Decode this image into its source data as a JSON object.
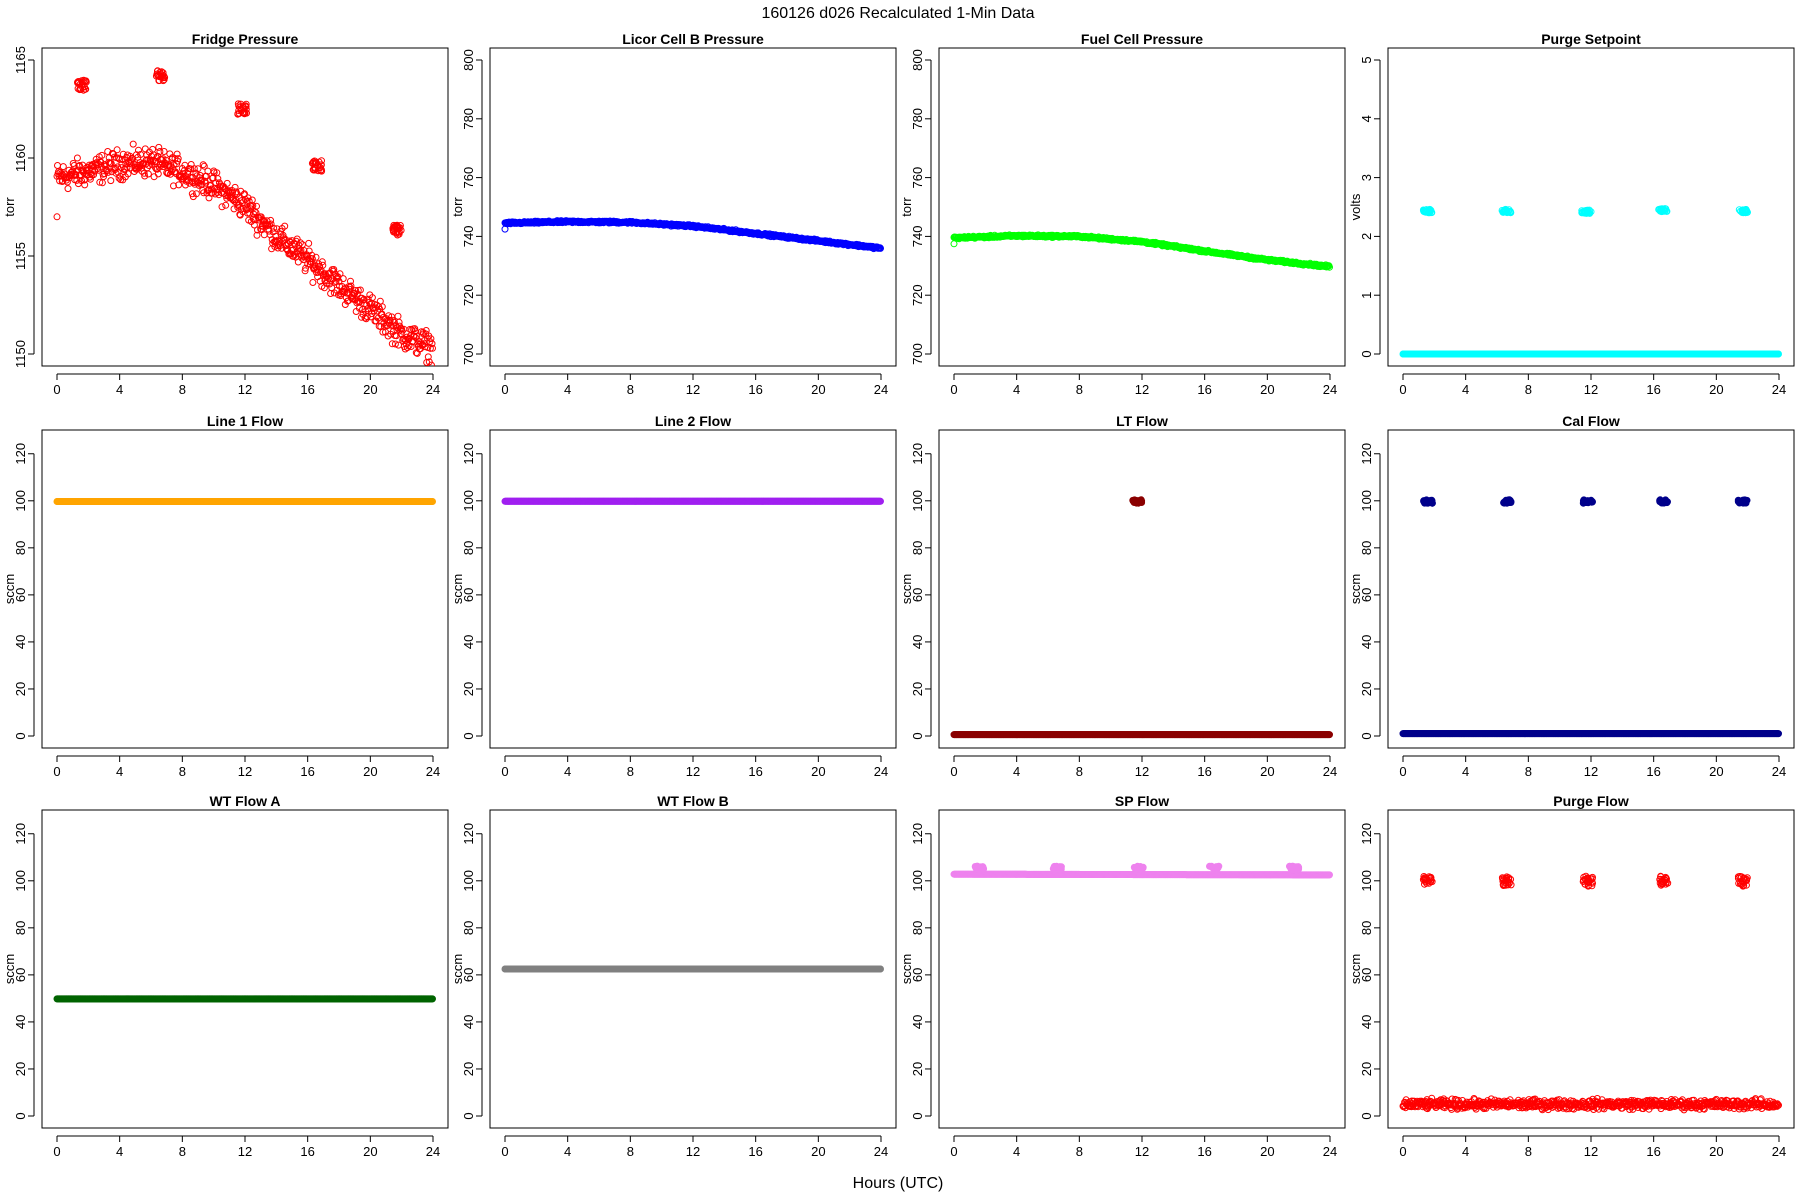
{
  "figure": {
    "title": "160126   d026   Recalculated 1-Min Data",
    "xlabel": "Hours (UTC)"
  },
  "chart_data": [
    {
      "type": "scatter",
      "title": "Fridge Pressure",
      "ylabel": "torr",
      "xlim": [
        0,
        24
      ],
      "ylim": [
        1150,
        1165
      ],
      "xticks": [
        0,
        4,
        8,
        12,
        16,
        20,
        24
      ],
      "yticks": [
        1150,
        1155,
        1160,
        1165
      ],
      "color": "#ff0000",
      "marker": "open-circle",
      "series": [
        {
          "baseline": [
            [
              0,
              1159
            ],
            [
              2,
              1159.3
            ],
            [
              4,
              1159.7
            ],
            [
              6,
              1159.8
            ],
            [
              8,
              1159.3
            ],
            [
              10,
              1158.6
            ],
            [
              12,
              1157.6
            ],
            [
              14,
              1156
            ],
            [
              16,
              1154.8
            ],
            [
              18,
              1153.5
            ],
            [
              20,
              1152.3
            ],
            [
              22,
              1151
            ],
            [
              24,
              1150.3
            ]
          ],
          "spread": 0.8,
          "clusters": [
            [
              1.6,
              1163.7
            ],
            [
              6.6,
              1164.2
            ],
            [
              11.8,
              1162.5
            ],
            [
              16.6,
              1159.6
            ],
            [
              21.7,
              1156.3
            ]
          ],
          "outliers": [
            [
              0,
              1157
            ]
          ]
        }
      ]
    },
    {
      "type": "scatter",
      "title": "Licor Cell B Pressure",
      "ylabel": "torr",
      "xlim": [
        0,
        24
      ],
      "ylim": [
        700,
        800
      ],
      "xticks": [
        0,
        4,
        8,
        12,
        16,
        20,
        24
      ],
      "yticks": [
        700,
        720,
        740,
        760,
        780,
        800
      ],
      "color": "#0000ff",
      "marker": "open-circle",
      "series": [
        {
          "baseline": [
            [
              0,
              744.5
            ],
            [
              4,
              745
            ],
            [
              8,
              744.8
            ],
            [
              12,
              743.5
            ],
            [
              16,
              741
            ],
            [
              20,
              738.5
            ],
            [
              24,
              736
            ]
          ],
          "spread": 0.4,
          "clusters": [],
          "outliers": [
            [
              0,
              742.5
            ]
          ]
        }
      ]
    },
    {
      "type": "scatter",
      "title": "Fuel Cell Pressure",
      "ylabel": "torr",
      "xlim": [
        0,
        24
      ],
      "ylim": [
        700,
        800
      ],
      "xticks": [
        0,
        4,
        8,
        12,
        16,
        20,
        24
      ],
      "yticks": [
        700,
        720,
        740,
        760,
        780,
        800
      ],
      "color": "#00ff00",
      "marker": "open-circle",
      "series": [
        {
          "baseline": [
            [
              0,
              739.5
            ],
            [
              4,
              740.2
            ],
            [
              8,
              740
            ],
            [
              12,
              738.2
            ],
            [
              16,
              735
            ],
            [
              20,
              732
            ],
            [
              24,
              729.7
            ]
          ],
          "spread": 0.4,
          "clusters": [],
          "outliers": [
            [
              0,
              737.5
            ]
          ]
        }
      ]
    },
    {
      "type": "scatter",
      "title": "Purge Setpoint",
      "ylabel": "volts",
      "xlim": [
        0,
        24
      ],
      "ylim": [
        0,
        5
      ],
      "xticks": [
        0,
        4,
        8,
        12,
        16,
        20,
        24
      ],
      "yticks": [
        0,
        1,
        2,
        3,
        4,
        5
      ],
      "color": "#00ffff",
      "marker": "open-circle",
      "series": [
        {
          "baseline": [
            [
              0,
              0
            ],
            [
              24,
              0
            ]
          ],
          "spread": 0,
          "clusters": [
            [
              1.6,
              2.43
            ],
            [
              6.6,
              2.43
            ],
            [
              11.7,
              2.42
            ],
            [
              16.6,
              2.45
            ],
            [
              21.7,
              2.43
            ]
          ],
          "outliers": []
        }
      ]
    },
    {
      "type": "scatter",
      "title": "Line 1 Flow",
      "ylabel": "sccm",
      "xlim": [
        0,
        24
      ],
      "ylim": [
        0,
        125
      ],
      "xticks": [
        0,
        4,
        8,
        12,
        16,
        20,
        24
      ],
      "yticks": [
        0,
        20,
        40,
        60,
        80,
        100,
        120
      ],
      "color": "#ffa500",
      "marker": "filled-circle",
      "series": [
        {
          "baseline": [
            [
              0,
              99.7
            ],
            [
              24,
              99.7
            ]
          ],
          "spread": 0,
          "clusters": [],
          "outliers": []
        }
      ]
    },
    {
      "type": "scatter",
      "title": "Line 2 Flow",
      "ylabel": "sccm",
      "xlim": [
        0,
        24
      ],
      "ylim": [
        0,
        125
      ],
      "xticks": [
        0,
        4,
        8,
        12,
        16,
        20,
        24
      ],
      "yticks": [
        0,
        20,
        40,
        60,
        80,
        100,
        120
      ],
      "color": "#a020f0",
      "marker": "filled-circle",
      "series": [
        {
          "baseline": [
            [
              0,
              99.8
            ],
            [
              24,
              99.8
            ]
          ],
          "spread": 0,
          "clusters": [],
          "outliers": []
        }
      ]
    },
    {
      "type": "scatter",
      "title": "LT Flow",
      "ylabel": "sccm",
      "xlim": [
        0,
        24
      ],
      "ylim": [
        0,
        125
      ],
      "xticks": [
        0,
        4,
        8,
        12,
        16,
        20,
        24
      ],
      "yticks": [
        0,
        20,
        40,
        60,
        80,
        100,
        120
      ],
      "color": "#8b0000",
      "marker": "filled-circle",
      "series": [
        {
          "baseline": [
            [
              0,
              0.6
            ],
            [
              24,
              0.6
            ]
          ],
          "spread": 0,
          "clusters": [
            [
              11.7,
              99.7
            ]
          ],
          "outliers": []
        }
      ]
    },
    {
      "type": "scatter",
      "title": "Cal Flow",
      "ylabel": "sccm",
      "xlim": [
        0,
        24
      ],
      "ylim": [
        0,
        125
      ],
      "xticks": [
        0,
        4,
        8,
        12,
        16,
        20,
        24
      ],
      "yticks": [
        0,
        20,
        40,
        60,
        80,
        100,
        120
      ],
      "color": "#00008b",
      "marker": "filled-circle",
      "series": [
        {
          "baseline": [
            [
              0,
              1
            ],
            [
              24,
              1
            ]
          ],
          "spread": 0,
          "clusters": [
            [
              1.6,
              99.7
            ],
            [
              6.6,
              99.7
            ],
            [
              11.8,
              99.7
            ],
            [
              16.6,
              99.7
            ],
            [
              21.7,
              99.7
            ]
          ],
          "outliers": []
        }
      ]
    },
    {
      "type": "scatter",
      "title": "WT Flow A",
      "ylabel": "sccm",
      "xlim": [
        0,
        24
      ],
      "ylim": [
        0,
        125
      ],
      "xticks": [
        0,
        4,
        8,
        12,
        16,
        20,
        24
      ],
      "yticks": [
        0,
        20,
        40,
        60,
        80,
        100,
        120
      ],
      "color": "#006400",
      "marker": "filled-circle",
      "series": [
        {
          "baseline": [
            [
              0,
              49.8
            ],
            [
              24,
              49.8
            ]
          ],
          "spread": 0,
          "clusters": [],
          "outliers": []
        }
      ]
    },
    {
      "type": "scatter",
      "title": "WT Flow B",
      "ylabel": "sccm",
      "xlim": [
        0,
        24
      ],
      "ylim": [
        0,
        125
      ],
      "xticks": [
        0,
        4,
        8,
        12,
        16,
        20,
        24
      ],
      "yticks": [
        0,
        20,
        40,
        60,
        80,
        100,
        120
      ],
      "color": "#808080",
      "marker": "filled-circle",
      "series": [
        {
          "baseline": [
            [
              0,
              62.5
            ],
            [
              24,
              62.5
            ]
          ],
          "spread": 0,
          "clusters": [],
          "outliers": []
        }
      ]
    },
    {
      "type": "scatter",
      "title": "SP Flow",
      "ylabel": "sccm",
      "xlim": [
        0,
        24
      ],
      "ylim": [
        0,
        125
      ],
      "xticks": [
        0,
        4,
        8,
        12,
        16,
        20,
        24
      ],
      "yticks": [
        0,
        20,
        40,
        60,
        80,
        100,
        120
      ],
      "color": "#ee82ee",
      "marker": "filled-circle",
      "series": [
        {
          "baseline": [
            [
              0,
              102.8
            ],
            [
              24,
              102.5
            ]
          ],
          "spread": 0,
          "clusters": [
            [
              1.6,
              105.5
            ],
            [
              6.6,
              105.5
            ],
            [
              11.8,
              105.5
            ],
            [
              16.6,
              105.5
            ],
            [
              21.7,
              105.5
            ]
          ],
          "outliers": []
        }
      ]
    },
    {
      "type": "scatter",
      "title": "Purge Flow",
      "ylabel": "sccm",
      "xlim": [
        0,
        24
      ],
      "ylim": [
        0,
        125
      ],
      "xticks": [
        0,
        4,
        8,
        12,
        16,
        20,
        24
      ],
      "yticks": [
        0,
        20,
        40,
        60,
        80,
        100,
        120
      ],
      "color": "#ff0000",
      "marker": "open-circle",
      "series": [
        {
          "baseline": [
            [
              0,
              5
            ],
            [
              24,
              5
            ]
          ],
          "spread": 2.2,
          "clusters": [
            [
              1.6,
              99.8
            ],
            [
              6.6,
              99.8
            ],
            [
              11.8,
              99.8
            ],
            [
              16.6,
              99.8
            ],
            [
              21.7,
              99.8
            ]
          ],
          "outliers": []
        }
      ]
    }
  ]
}
